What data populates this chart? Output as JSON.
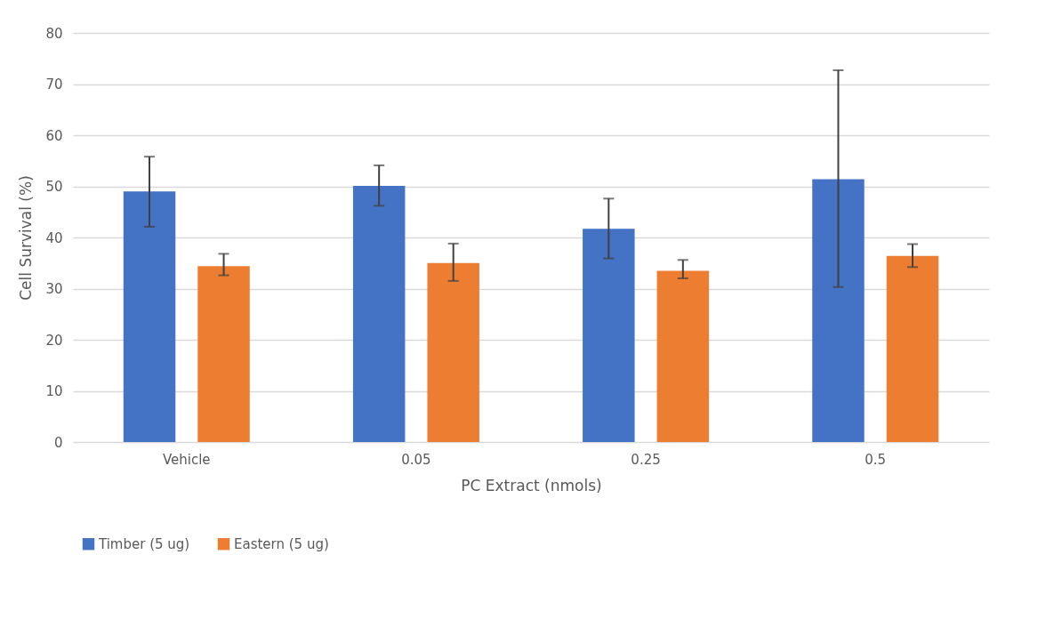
{
  "chart_data": {
    "type": "bar",
    "xlabel": "PC Extract (nmols)",
    "ylabel": "Cell Survival (%)",
    "categories": [
      "Vehicle",
      "0.05",
      "0.25",
      "0.5"
    ],
    "series": [
      {
        "name": "Timber (5 ug)",
        "color": "#4472c4",
        "values": [
          49.0,
          50.1,
          41.7,
          51.4
        ],
        "errors": [
          [
            42.1,
            55.8
          ],
          [
            46.2,
            54.1
          ],
          [
            35.9,
            47.6
          ],
          [
            30.3,
            72.7
          ]
        ]
      },
      {
        "name": "Eastern (5 ug)",
        "color": "#ed7d31",
        "values": [
          34.4,
          35.0,
          33.5,
          36.4
        ],
        "errors": [
          [
            32.6,
            36.8
          ],
          [
            31.5,
            38.8
          ],
          [
            32.0,
            35.6
          ],
          [
            34.2,
            38.7
          ]
        ]
      }
    ],
    "ylim": [
      0,
      80
    ],
    "yticks": [
      0,
      10,
      20,
      30,
      40,
      50,
      60,
      70,
      80
    ],
    "grid": "y",
    "legend": "bottom"
  }
}
